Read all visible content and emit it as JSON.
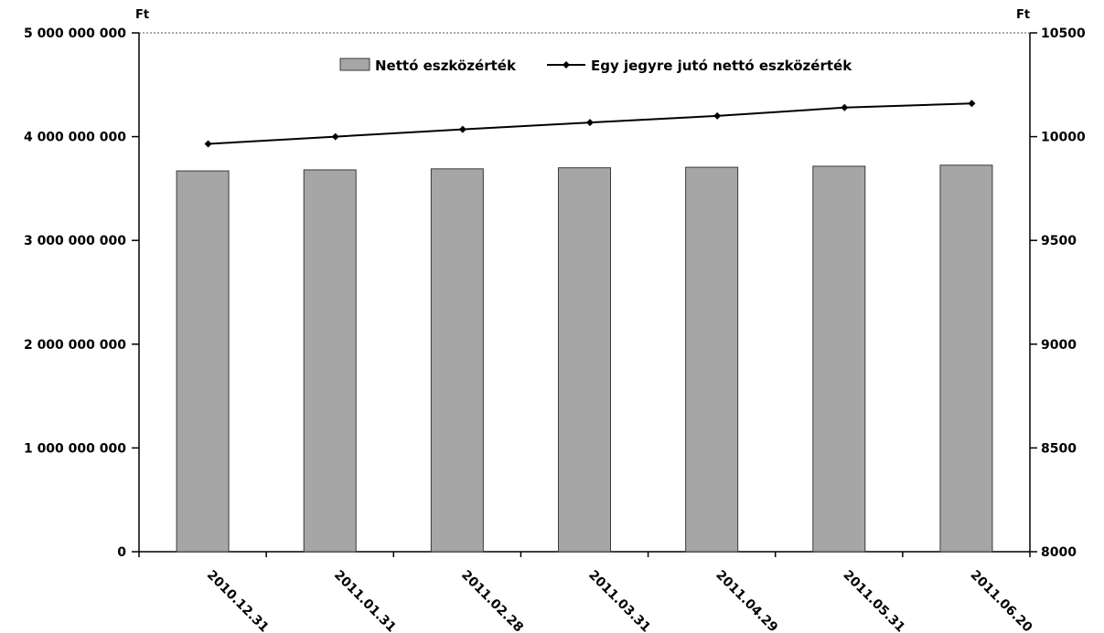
{
  "chart_data": {
    "type": "bar",
    "categories": [
      "2010.12.31",
      "2011.01.31",
      "2011.02.28",
      "2011.03.31",
      "2011.04.29",
      "2011.05.31",
      "2011.06.20"
    ],
    "series": [
      {
        "name": "Nettó eszközérték",
        "type": "bar",
        "axis": "left",
        "values": [
          3670000000,
          3680000000,
          3690000000,
          3700000000,
          3705000000,
          3715000000,
          3725000000
        ]
      },
      {
        "name": "Egy jegyre jutó nettó eszközérték",
        "type": "line",
        "axis": "right",
        "values": [
          9965,
          10000,
          10035,
          10068,
          10100,
          10140,
          10160
        ]
      }
    ],
    "y_left": {
      "unit": "Ft",
      "ylim": [
        0,
        5000000000
      ],
      "ticks": [
        0,
        1000000000,
        2000000000,
        3000000000,
        4000000000,
        5000000000
      ],
      "tick_labels": [
        "0",
        "1 000 000 000",
        "2 000 000 000",
        "3 000 000 000",
        "4 000 000 000",
        "5 000 000 000"
      ]
    },
    "y_right": {
      "unit": "Ft",
      "ylim": [
        8000,
        10500
      ],
      "ticks": [
        8000,
        8500,
        9000,
        9500,
        10000,
        10500
      ],
      "tick_labels": [
        "8000",
        "8500",
        "9000",
        "9500",
        "10000",
        "10500"
      ]
    },
    "legend_position": "top-center",
    "grid": false
  }
}
